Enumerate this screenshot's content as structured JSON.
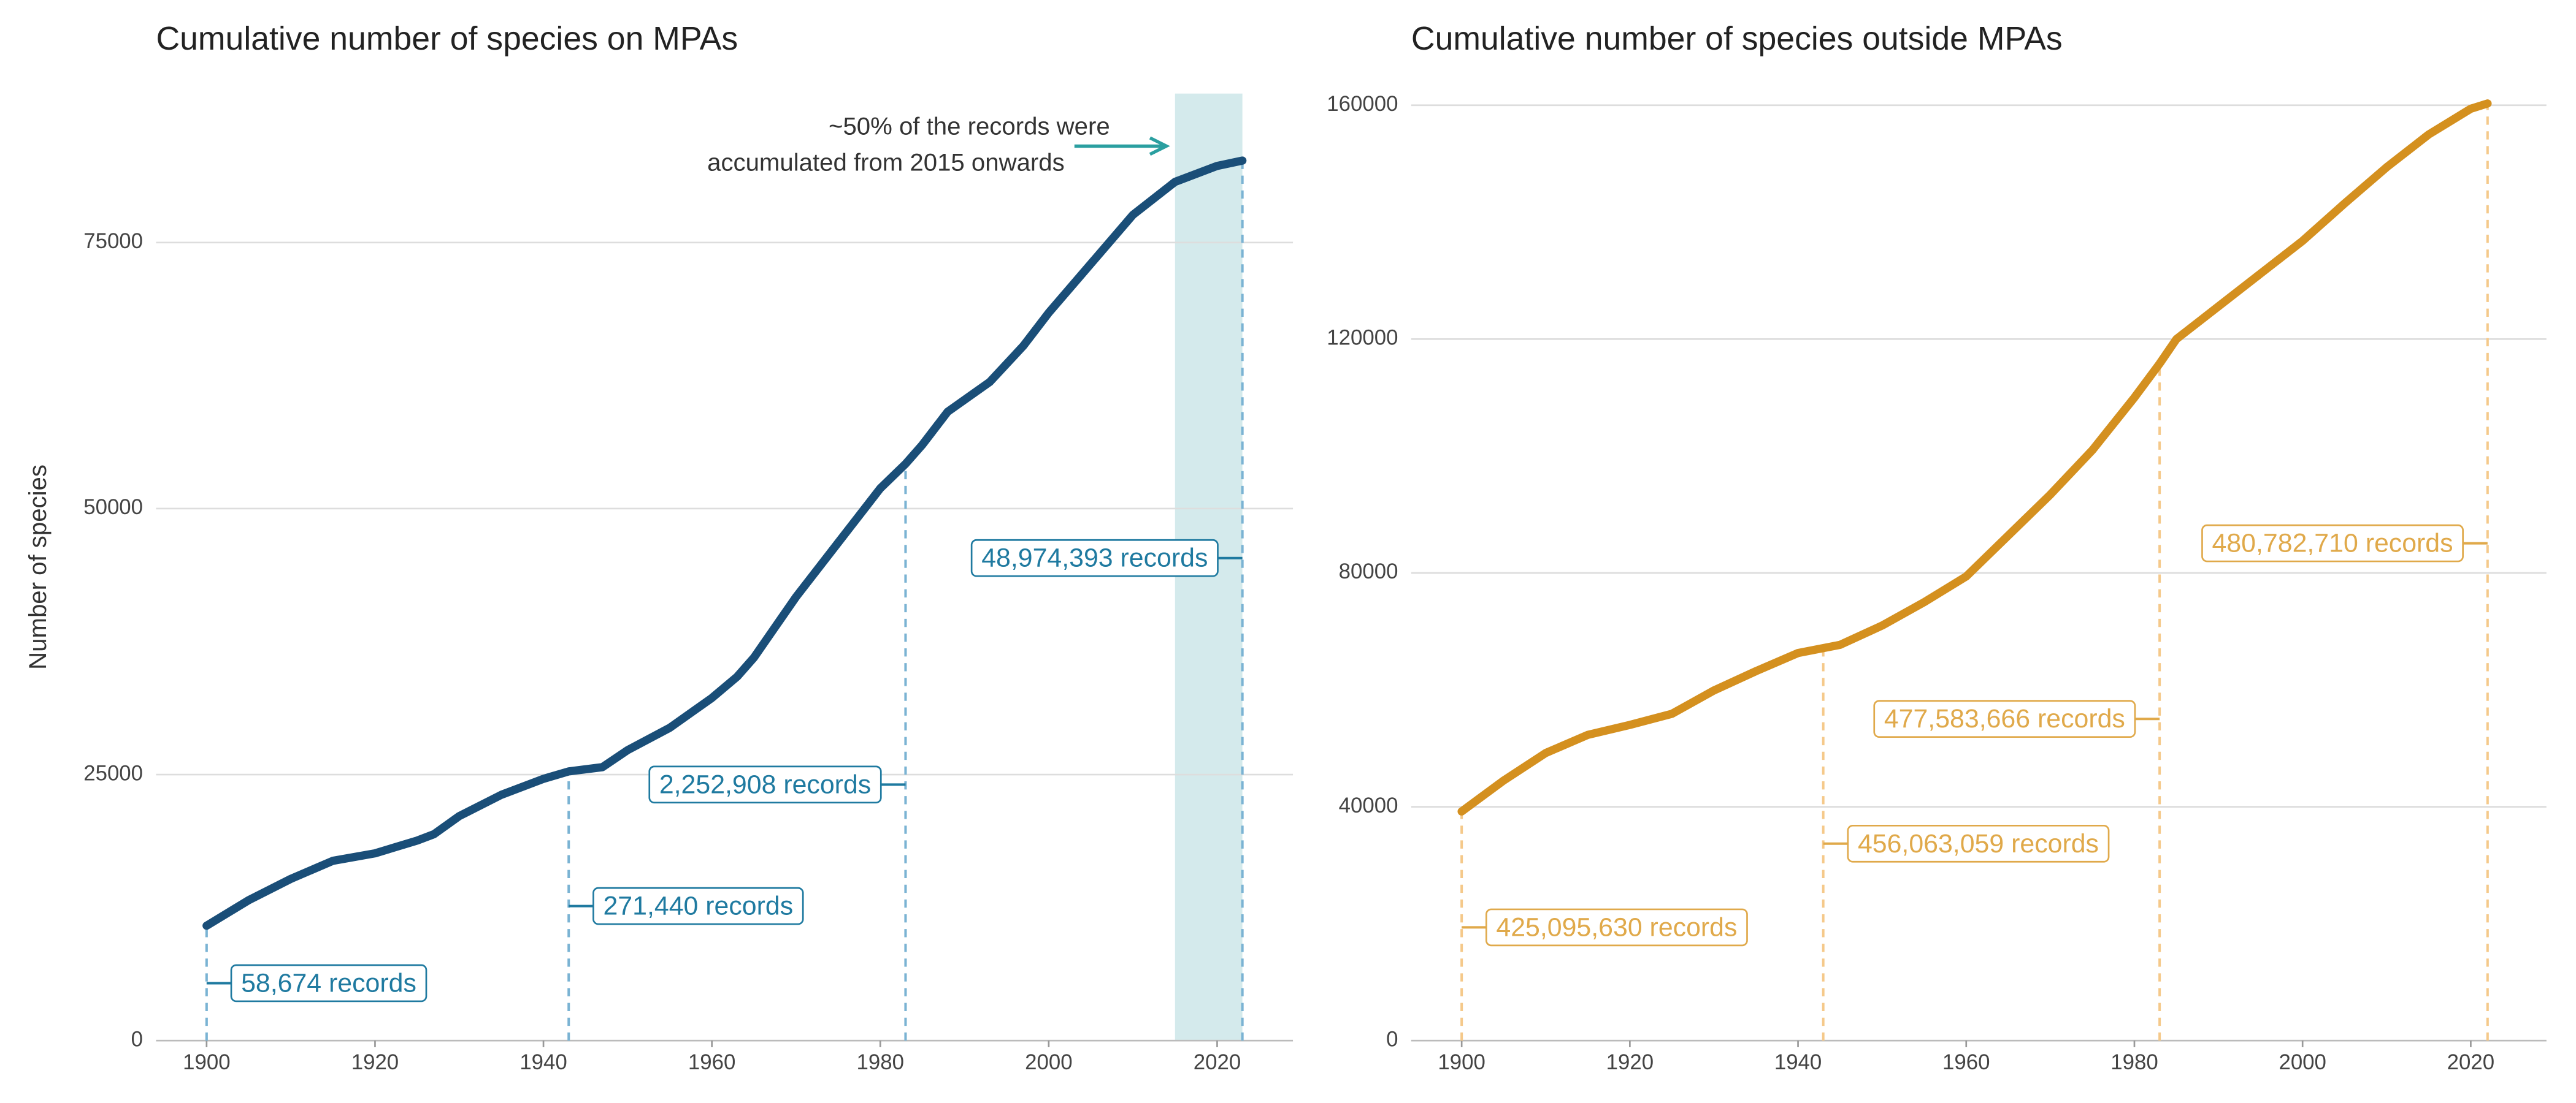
{
  "chart_data": [
    {
      "type": "line",
      "title": "Cumulative number of species on MPAs",
      "ylabel": "Number of species",
      "x": [
        1900,
        1905,
        1910,
        1915,
        1920,
        1925,
        1927,
        1930,
        1935,
        1940,
        1943,
        1947,
        1950,
        1955,
        1960,
        1963,
        1965,
        1970,
        1975,
        1980,
        1983,
        1985,
        1988,
        1993,
        1997,
        2000,
        2005,
        2010,
        2015,
        2020,
        2023
      ],
      "series": [
        {
          "name": "MPAs",
          "color": "#1a4e78",
          "values": [
            10800,
            13200,
            15200,
            16900,
            17600,
            18800,
            19400,
            21100,
            23100,
            24600,
            25300,
            25700,
            27300,
            29400,
            32200,
            34200,
            36000,
            41700,
            46800,
            51900,
            54200,
            56000,
            59100,
            61900,
            65300,
            68400,
            73000,
            77600,
            80700,
            82200,
            82700
          ]
        }
      ],
      "xlim": [
        1894,
        2029
      ],
      "ylim": [
        0,
        89000
      ],
      "xticks": [
        1900,
        1920,
        1940,
        1960,
        1980,
        2000,
        2020
      ],
      "yticks": [
        0,
        25000,
        50000,
        75000
      ],
      "grid": true,
      "label_color": "#1f7aa0",
      "dash_color": "#7ab3d3",
      "annotations": [
        {
          "x": 1900,
          "text": "58,674 records"
        },
        {
          "x": 1943,
          "text": "271,440 records"
        },
        {
          "x": 1983,
          "text": "2,252,908 records"
        },
        {
          "x": 2023,
          "text": "48,974,393 records"
        }
      ],
      "highlight": [
        2015,
        2023
      ],
      "highlight_color": "#d4eaec",
      "highlight_note": [
        "~50% of the records were",
        "accumulated from 2015 onwards"
      ]
    },
    {
      "type": "line",
      "title": "Cumulative number of species outside MPAs",
      "x": [
        1900,
        1905,
        1910,
        1915,
        1920,
        1925,
        1930,
        1935,
        1940,
        1945,
        1950,
        1955,
        1960,
        1965,
        1970,
        1975,
        1980,
        1983,
        1985,
        1990,
        1995,
        2000,
        2005,
        2010,
        2015,
        2020,
        2022
      ],
      "series": [
        {
          "name": "Outside MPAs",
          "color": "#d4901f",
          "values": [
            39200,
            44500,
            49200,
            52300,
            54000,
            55900,
            59900,
            63200,
            66300,
            67700,
            71000,
            75000,
            79400,
            86400,
            93400,
            101000,
            110000,
            115800,
            120000,
            125600,
            131200,
            136800,
            143200,
            149400,
            155000,
            159400,
            160300
          ]
        }
      ],
      "xlim": [
        1894,
        2029
      ],
      "ylim": [
        0,
        162000
      ],
      "xticks": [
        1900,
        1920,
        1940,
        1960,
        1980,
        2000,
        2020
      ],
      "yticks": [
        0,
        40000,
        80000,
        120000,
        160000
      ],
      "grid": true,
      "label_color": "#e0a94a",
      "dash_color": "#f5c98a",
      "annotations": [
        {
          "x": 1900,
          "text": "425,095,630 records"
        },
        {
          "x": 1943,
          "text": "456,063,059 records"
        },
        {
          "x": 1983,
          "text": "477,583,666 records"
        },
        {
          "x": 2022,
          "text": "480,782,710 records"
        }
      ]
    }
  ]
}
